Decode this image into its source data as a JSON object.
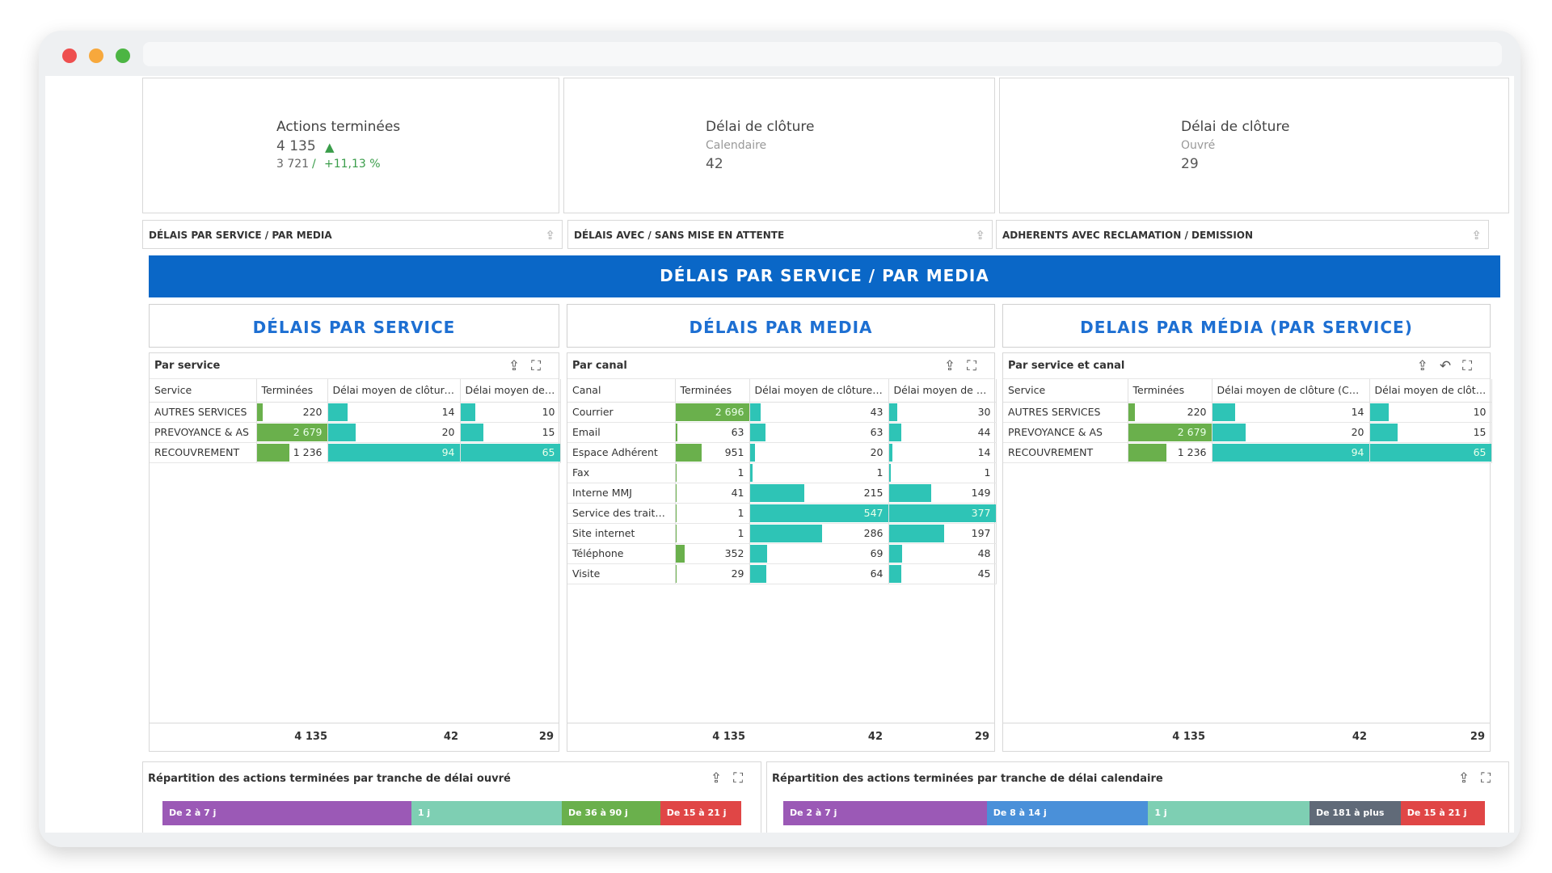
{
  "window": {
    "dots": {
      "red": "#ee4f4f",
      "orange": "#f7a83c",
      "green": "#4cb543"
    }
  },
  "kpis": [
    {
      "title": "Actions terminées",
      "value": "4 135",
      "prev": "3 721",
      "sep": "/",
      "delta": "+11,13 %",
      "trend": "up",
      "color": "#3a9d4a"
    },
    {
      "title": "Délai de clôture",
      "sub": "Calendaire",
      "value": "42"
    },
    {
      "title": "Délai de clôture",
      "sub": "Ouvré",
      "value": "29"
    }
  ],
  "tabs": [
    "DÉLAIS PAR SERVICE / PAR MEDIA",
    "DÉLAIS AVEC / SANS MISE EN ATTENTE",
    "ADHERENTS AVEC RECLAMATION / DEMISSION"
  ],
  "banner": "DÉLAIS PAR SERVICE / PAR MEDIA",
  "sections": [
    "DÉLAIS PAR SERVICE",
    "DÉLAIS PAR MEDIA",
    "DELAIS PAR MÉDIA (PAR SERVICE)"
  ],
  "colors": {
    "green": "#6ab04c",
    "teal": "#2ec4b6",
    "accent": "#0a67c7"
  },
  "grids": [
    {
      "title": "Par service",
      "columns": [
        "Service",
        "Terminées",
        "Délai moyen de clôture (...",
        "Délai moyen de cl..."
      ],
      "rows": [
        {
          "label": "AUTRES SERVICES",
          "done": 220,
          "done_t": "220",
          "cal": 14,
          "cal_t": "14",
          "ouv": 10,
          "ouv_t": "10"
        },
        {
          "label": "PREVOYANCE & AS",
          "done": 2679,
          "done_t": "2 679",
          "cal": 20,
          "cal_t": "20",
          "ouv": 15,
          "ouv_t": "15"
        },
        {
          "label": "RECOUVREMENT",
          "done": 1236,
          "done_t": "1 236",
          "cal": 94,
          "cal_t": "94",
          "ouv": 65,
          "ouv_t": "65"
        }
      ],
      "totals": [
        "4 135",
        "42",
        "29"
      ]
    },
    {
      "title": "Par canal",
      "columns": [
        "Canal",
        "Terminées",
        "Délai moyen de clôture (...",
        "Délai moyen de clô..."
      ],
      "rows": [
        {
          "label": "Courrier",
          "done": 2696,
          "done_t": "2 696",
          "cal": 43,
          "cal_t": "43",
          "ouv": 30,
          "ouv_t": "30"
        },
        {
          "label": "Email",
          "done": 63,
          "done_t": "63",
          "cal": 63,
          "cal_t": "63",
          "ouv": 44,
          "ouv_t": "44"
        },
        {
          "label": "Espace Adhérent",
          "done": 951,
          "done_t": "951",
          "cal": 20,
          "cal_t": "20",
          "ouv": 14,
          "ouv_t": "14"
        },
        {
          "label": "Fax",
          "done": 1,
          "done_t": "1",
          "cal": 1,
          "cal_t": "1",
          "ouv": 1,
          "ouv_t": "1"
        },
        {
          "label": "Interne MMJ",
          "done": 41,
          "done_t": "41",
          "cal": 215,
          "cal_t": "215",
          "ouv": 149,
          "ouv_t": "149"
        },
        {
          "label": "Service des traite...",
          "done": 1,
          "done_t": "1",
          "cal": 547,
          "cal_t": "547",
          "ouv": 377,
          "ouv_t": "377"
        },
        {
          "label": "Site internet",
          "done": 1,
          "done_t": "1",
          "cal": 286,
          "cal_t": "286",
          "ouv": 197,
          "ouv_t": "197"
        },
        {
          "label": "Téléphone",
          "done": 352,
          "done_t": "352",
          "cal": 69,
          "cal_t": "69",
          "ouv": 48,
          "ouv_t": "48"
        },
        {
          "label": "Visite",
          "done": 29,
          "done_t": "29",
          "cal": 64,
          "cal_t": "64",
          "ouv": 45,
          "ouv_t": "45"
        }
      ],
      "totals": [
        "4 135",
        "42",
        "29"
      ]
    },
    {
      "title": "Par service et canal",
      "columns": [
        "Service",
        "Terminées",
        "Délai moyen de clôture (Cale...",
        "Délai moyen de clôtur..."
      ],
      "rows": [
        {
          "label": "AUTRES SERVICES",
          "done": 220,
          "done_t": "220",
          "cal": 14,
          "cal_t": "14",
          "ouv": 10,
          "ouv_t": "10"
        },
        {
          "label": "PREVOYANCE & AS",
          "done": 2679,
          "done_t": "2 679",
          "cal": 20,
          "cal_t": "20",
          "ouv": 15,
          "ouv_t": "15"
        },
        {
          "label": "RECOUVREMENT",
          "done": 1236,
          "done_t": "1 236",
          "cal": 94,
          "cal_t": "94",
          "ouv": 65,
          "ouv_t": "65"
        }
      ],
      "totals": [
        "4 135",
        "42",
        "29"
      ]
    }
  ],
  "bottom": [
    {
      "title": "Répartition des actions terminées par tranche de délai ouvré",
      "segments": [
        {
          "label": "De 2 à 7 j",
          "share": 0.43,
          "color": "#9b59b6"
        },
        {
          "label": "1 j",
          "share": 0.26,
          "color": "#7ecfb3"
        },
        {
          "label": "De 36 à 90 j",
          "share": 0.17,
          "color": "#6ab04c"
        },
        {
          "label": "De 15 à 21 j",
          "share": 0.14,
          "color": "#e04646"
        }
      ]
    },
    {
      "title": "Répartition des actions terminées par tranche de délai calendaire",
      "segments": [
        {
          "label": "De 2 à 7 j",
          "share": 0.29,
          "color": "#9b59b6"
        },
        {
          "label": "De 8 à 14 j",
          "share": 0.23,
          "color": "#4a90d9"
        },
        {
          "label": "1 j",
          "share": 0.23,
          "color": "#7ecfb3"
        },
        {
          "label": "De 181 à plus",
          "share": 0.13,
          "color": "#606a78"
        },
        {
          "label": "De 15 à 21 j",
          "share": 0.12,
          "color": "#e04646"
        }
      ]
    }
  ]
}
